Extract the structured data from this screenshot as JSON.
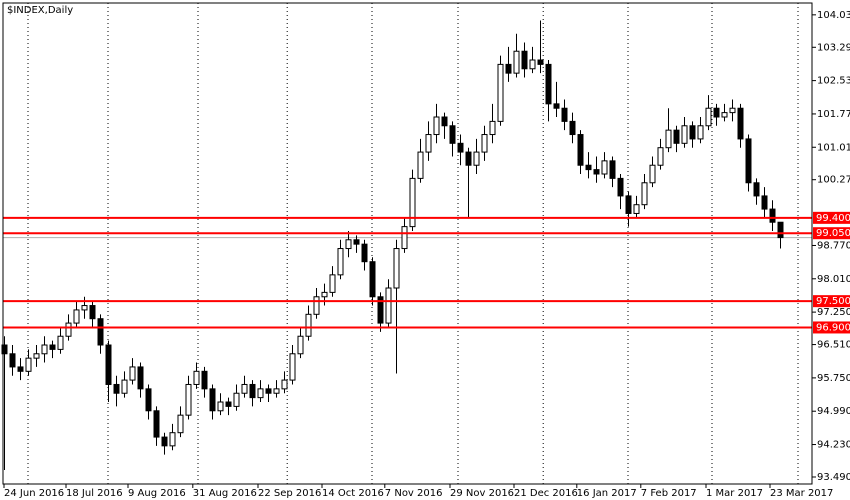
{
  "chart_data": {
    "type": "candlestick",
    "title": "$INDEX,Daily",
    "ylim": [
      93.33,
      104.3
    ],
    "xlim": [
      -0.125,
      101
    ],
    "yticks": [
      {
        "value": 104.03,
        "label": "104.030"
      },
      {
        "value": 103.29,
        "label": "103.290"
      },
      {
        "value": 102.53,
        "label": "102.530"
      },
      {
        "value": 101.77,
        "label": "101.770"
      },
      {
        "value": 101.01,
        "label": "101.010"
      },
      {
        "value": 100.27,
        "label": "100.270"
      },
      {
        "value": 98.77,
        "label": "98.770"
      },
      {
        "value": 98.01,
        "label": "98.010"
      },
      {
        "value": 97.25,
        "label": "97.250"
      },
      {
        "value": 96.51,
        "label": "96.510"
      },
      {
        "value": 95.75,
        "label": "95.750"
      },
      {
        "value": 94.99,
        "label": "94.990"
      },
      {
        "value": 94.23,
        "label": "94.230"
      },
      {
        "value": 93.49,
        "label": "93.490"
      }
    ],
    "xticks": [
      {
        "value": 0,
        "label": "24 Jun 2016"
      },
      {
        "value": 7.75,
        "label": "18 Jul 2016"
      },
      {
        "value": 15.5,
        "label": "9 Aug 2016"
      },
      {
        "value": 23.6,
        "label": "31 Aug 2016"
      },
      {
        "value": 31.75,
        "label": "22 Sep 2016"
      },
      {
        "value": 39.75,
        "label": "14 Oct 2016"
      },
      {
        "value": 47.6,
        "label": "7 Nov 2016"
      },
      {
        "value": 55.75,
        "label": "29 Nov 2016"
      },
      {
        "value": 63.75,
        "label": "21 Dec 2016"
      },
      {
        "value": 71.6,
        "label": "16 Jan 2017"
      },
      {
        "value": 79.6,
        "label": "7 Feb 2017"
      },
      {
        "value": 87.75,
        "label": "1 Mar 2017"
      },
      {
        "value": 95.75,
        "label": "23 Mar 2017"
      }
    ],
    "vgrid": [
      3,
      13,
      24.25,
      35.4,
      46,
      56.75,
      67.4,
      78,
      88.5,
      99.25
    ],
    "levels": [
      {
        "value": 99.4,
        "label": "99.400"
      },
      {
        "value": 99.05,
        "label": "99.050"
      },
      {
        "value": 97.5,
        "label": "97.500"
      },
      {
        "value": 96.9,
        "label": "96.900"
      }
    ],
    "level_color": "#ff0000",
    "ohlc": [
      [
        96.5,
        96.7,
        93.65,
        96.3
      ],
      [
        96.3,
        96.5,
        95.8,
        96.0
      ],
      [
        96.0,
        96.2,
        95.7,
        95.9
      ],
      [
        95.9,
        96.4,
        95.8,
        96.2
      ],
      [
        96.2,
        96.5,
        96.0,
        96.3
      ],
      [
        96.3,
        96.7,
        96.1,
        96.5
      ],
      [
        96.5,
        96.6,
        96.2,
        96.4
      ],
      [
        96.4,
        96.9,
        96.3,
        96.7
      ],
      [
        96.7,
        97.2,
        96.6,
        97.0
      ],
      [
        97.0,
        97.5,
        96.9,
        97.3
      ],
      [
        97.3,
        97.6,
        97.1,
        97.4
      ],
      [
        97.4,
        97.5,
        96.9,
        97.1
      ],
      [
        97.1,
        97.2,
        96.3,
        96.5
      ],
      [
        96.5,
        96.6,
        95.2,
        95.6
      ],
      [
        95.6,
        95.8,
        95.1,
        95.4
      ],
      [
        95.4,
        95.9,
        95.3,
        95.7
      ],
      [
        95.7,
        96.2,
        95.6,
        96.0
      ],
      [
        96.0,
        96.1,
        95.3,
        95.5
      ],
      [
        95.5,
        95.6,
        94.8,
        95.0
      ],
      [
        95.0,
        95.1,
        94.2,
        94.4
      ],
      [
        94.4,
        94.5,
        94.0,
        94.2
      ],
      [
        94.2,
        94.7,
        94.1,
        94.5
      ],
      [
        94.5,
        95.1,
        94.4,
        94.9
      ],
      [
        94.9,
        95.8,
        94.8,
        95.6
      ],
      [
        95.6,
        96.1,
        95.5,
        95.9
      ],
      [
        95.9,
        96.0,
        95.3,
        95.5
      ],
      [
        95.5,
        95.6,
        94.8,
        95.0
      ],
      [
        95.0,
        95.4,
        94.9,
        95.2
      ],
      [
        95.2,
        95.3,
        94.9,
        95.1
      ],
      [
        95.1,
        95.6,
        95.0,
        95.4
      ],
      [
        95.4,
        95.8,
        95.3,
        95.6
      ],
      [
        95.6,
        95.7,
        95.1,
        95.3
      ],
      [
        95.3,
        95.7,
        95.2,
        95.5
      ],
      [
        95.5,
        95.6,
        95.2,
        95.4
      ],
      [
        95.4,
        95.7,
        95.3,
        95.5
      ],
      [
        95.5,
        95.9,
        95.4,
        95.7
      ],
      [
        95.7,
        96.5,
        95.6,
        96.3
      ],
      [
        96.3,
        96.9,
        96.2,
        96.7
      ],
      [
        96.7,
        97.4,
        96.6,
        97.2
      ],
      [
        97.2,
        97.8,
        97.1,
        97.6
      ],
      [
        97.6,
        97.9,
        97.4,
        97.7
      ],
      [
        97.7,
        98.3,
        97.6,
        98.1
      ],
      [
        98.1,
        98.9,
        98.0,
        98.7
      ],
      [
        98.7,
        99.1,
        98.5,
        98.9
      ],
      [
        98.9,
        99.0,
        98.6,
        98.8
      ],
      [
        98.8,
        98.9,
        98.2,
        98.4
      ],
      [
        98.4,
        98.5,
        97.4,
        97.6
      ],
      [
        97.6,
        97.7,
        96.8,
        97.0
      ],
      [
        97.0,
        98.0,
        96.9,
        97.8
      ],
      [
        97.8,
        98.9,
        95.85,
        98.7
      ],
      [
        98.7,
        99.4,
        98.6,
        99.2
      ],
      [
        99.2,
        100.5,
        99.1,
        100.3
      ],
      [
        100.3,
        101.2,
        100.2,
        100.9
      ],
      [
        100.9,
        101.6,
        100.7,
        101.3
      ],
      [
        101.3,
        102.0,
        101.1,
        101.7
      ],
      [
        101.7,
        101.8,
        101.2,
        101.5
      ],
      [
        101.5,
        101.6,
        100.8,
        101.1
      ],
      [
        101.1,
        101.3,
        100.6,
        100.9
      ],
      [
        100.9,
        101.0,
        99.4,
        100.6
      ],
      [
        100.6,
        101.2,
        100.4,
        100.9
      ],
      [
        100.9,
        101.5,
        100.7,
        101.3
      ],
      [
        101.3,
        102.0,
        101.1,
        101.6
      ],
      [
        101.6,
        103.1,
        101.5,
        102.9
      ],
      [
        102.9,
        103.3,
        102.5,
        102.7
      ],
      [
        102.7,
        103.6,
        102.6,
        103.2
      ],
      [
        103.2,
        103.4,
        102.6,
        102.8
      ],
      [
        102.8,
        103.3,
        102.7,
        103.0
      ],
      [
        103.0,
        103.9,
        102.7,
        102.9
      ],
      [
        102.9,
        103.0,
        101.6,
        102.0
      ],
      [
        102.0,
        102.5,
        101.7,
        101.9
      ],
      [
        101.9,
        102.1,
        101.4,
        101.6
      ],
      [
        101.6,
        101.8,
        101.1,
        101.3
      ],
      [
        101.3,
        101.4,
        100.4,
        100.6
      ],
      [
        100.6,
        100.9,
        100.3,
        100.5
      ],
      [
        100.5,
        100.8,
        100.2,
        100.4
      ],
      [
        100.4,
        100.9,
        100.3,
        100.7
      ],
      [
        100.7,
        100.8,
        100.1,
        100.3
      ],
      [
        100.3,
        100.4,
        99.6,
        99.9
      ],
      [
        99.9,
        100.0,
        99.2,
        99.5
      ],
      [
        99.5,
        99.9,
        99.4,
        99.7
      ],
      [
        99.7,
        100.4,
        99.6,
        100.2
      ],
      [
        100.2,
        100.8,
        100.1,
        100.6
      ],
      [
        100.6,
        101.2,
        100.5,
        101.0
      ],
      [
        101.0,
        101.9,
        100.9,
        101.4
      ],
      [
        101.4,
        101.5,
        100.9,
        101.1
      ],
      [
        101.1,
        101.7,
        101.0,
        101.5
      ],
      [
        101.5,
        101.6,
        101.0,
        101.2
      ],
      [
        101.2,
        101.7,
        101.1,
        101.5
      ],
      [
        101.5,
        102.2,
        101.4,
        101.9
      ],
      [
        101.9,
        102.0,
        101.5,
        101.7
      ],
      [
        101.7,
        102.0,
        101.6,
        101.8
      ],
      [
        101.8,
        102.1,
        101.6,
        101.9
      ],
      [
        101.9,
        102.0,
        101.0,
        101.2
      ],
      [
        101.2,
        101.3,
        100.0,
        100.2
      ],
      [
        100.2,
        100.3,
        99.7,
        99.9
      ],
      [
        99.9,
        100.1,
        99.4,
        99.6
      ],
      [
        99.6,
        99.8,
        99.1,
        99.3
      ],
      [
        99.3,
        99.3,
        98.7,
        98.95
      ]
    ],
    "up_color": "#ffffff",
    "down_color": "#000000",
    "outline_color": "#000000"
  }
}
